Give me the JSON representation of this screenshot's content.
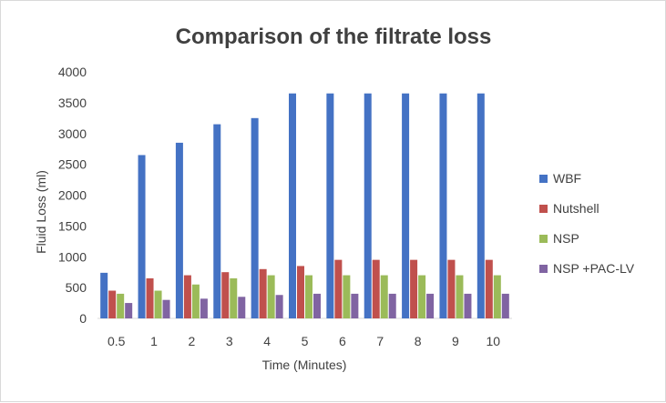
{
  "chart_data": {
    "type": "bar",
    "title": "Comparison of the filtrate loss",
    "xlabel": "Time (Minutes)",
    "ylabel": "Fluid Loss (ml)",
    "categories": [
      "0.5",
      "1",
      "2",
      "3",
      "4",
      "5",
      "6",
      "7",
      "8",
      "9",
      "10"
    ],
    "ylim": [
      0,
      4000
    ],
    "yticks": [
      "0",
      "500",
      "1000",
      "1500",
      "2000",
      "2500",
      "3000",
      "3500",
      "4000"
    ],
    "grid": false,
    "legend_position": "right",
    "series": [
      {
        "name": "WBF",
        "color": "#4472c4",
        "values": [
          740,
          2650,
          2850,
          3150,
          3250,
          3650,
          3650,
          3650,
          3650,
          3650,
          3650
        ]
      },
      {
        "name": "Nutshell",
        "color": "#c0504d",
        "values": [
          450,
          650,
          700,
          750,
          800,
          850,
          950,
          950,
          950,
          950,
          950
        ]
      },
      {
        "name": "NSP",
        "color": "#9bbb59",
        "values": [
          400,
          450,
          550,
          650,
          700,
          700,
          700,
          700,
          700,
          700,
          700
        ]
      },
      {
        "name": "NSP +PAC-LV",
        "color": "#8064a2",
        "values": [
          250,
          300,
          320,
          350,
          380,
          400,
          400,
          400,
          400,
          400,
          400
        ]
      }
    ]
  }
}
